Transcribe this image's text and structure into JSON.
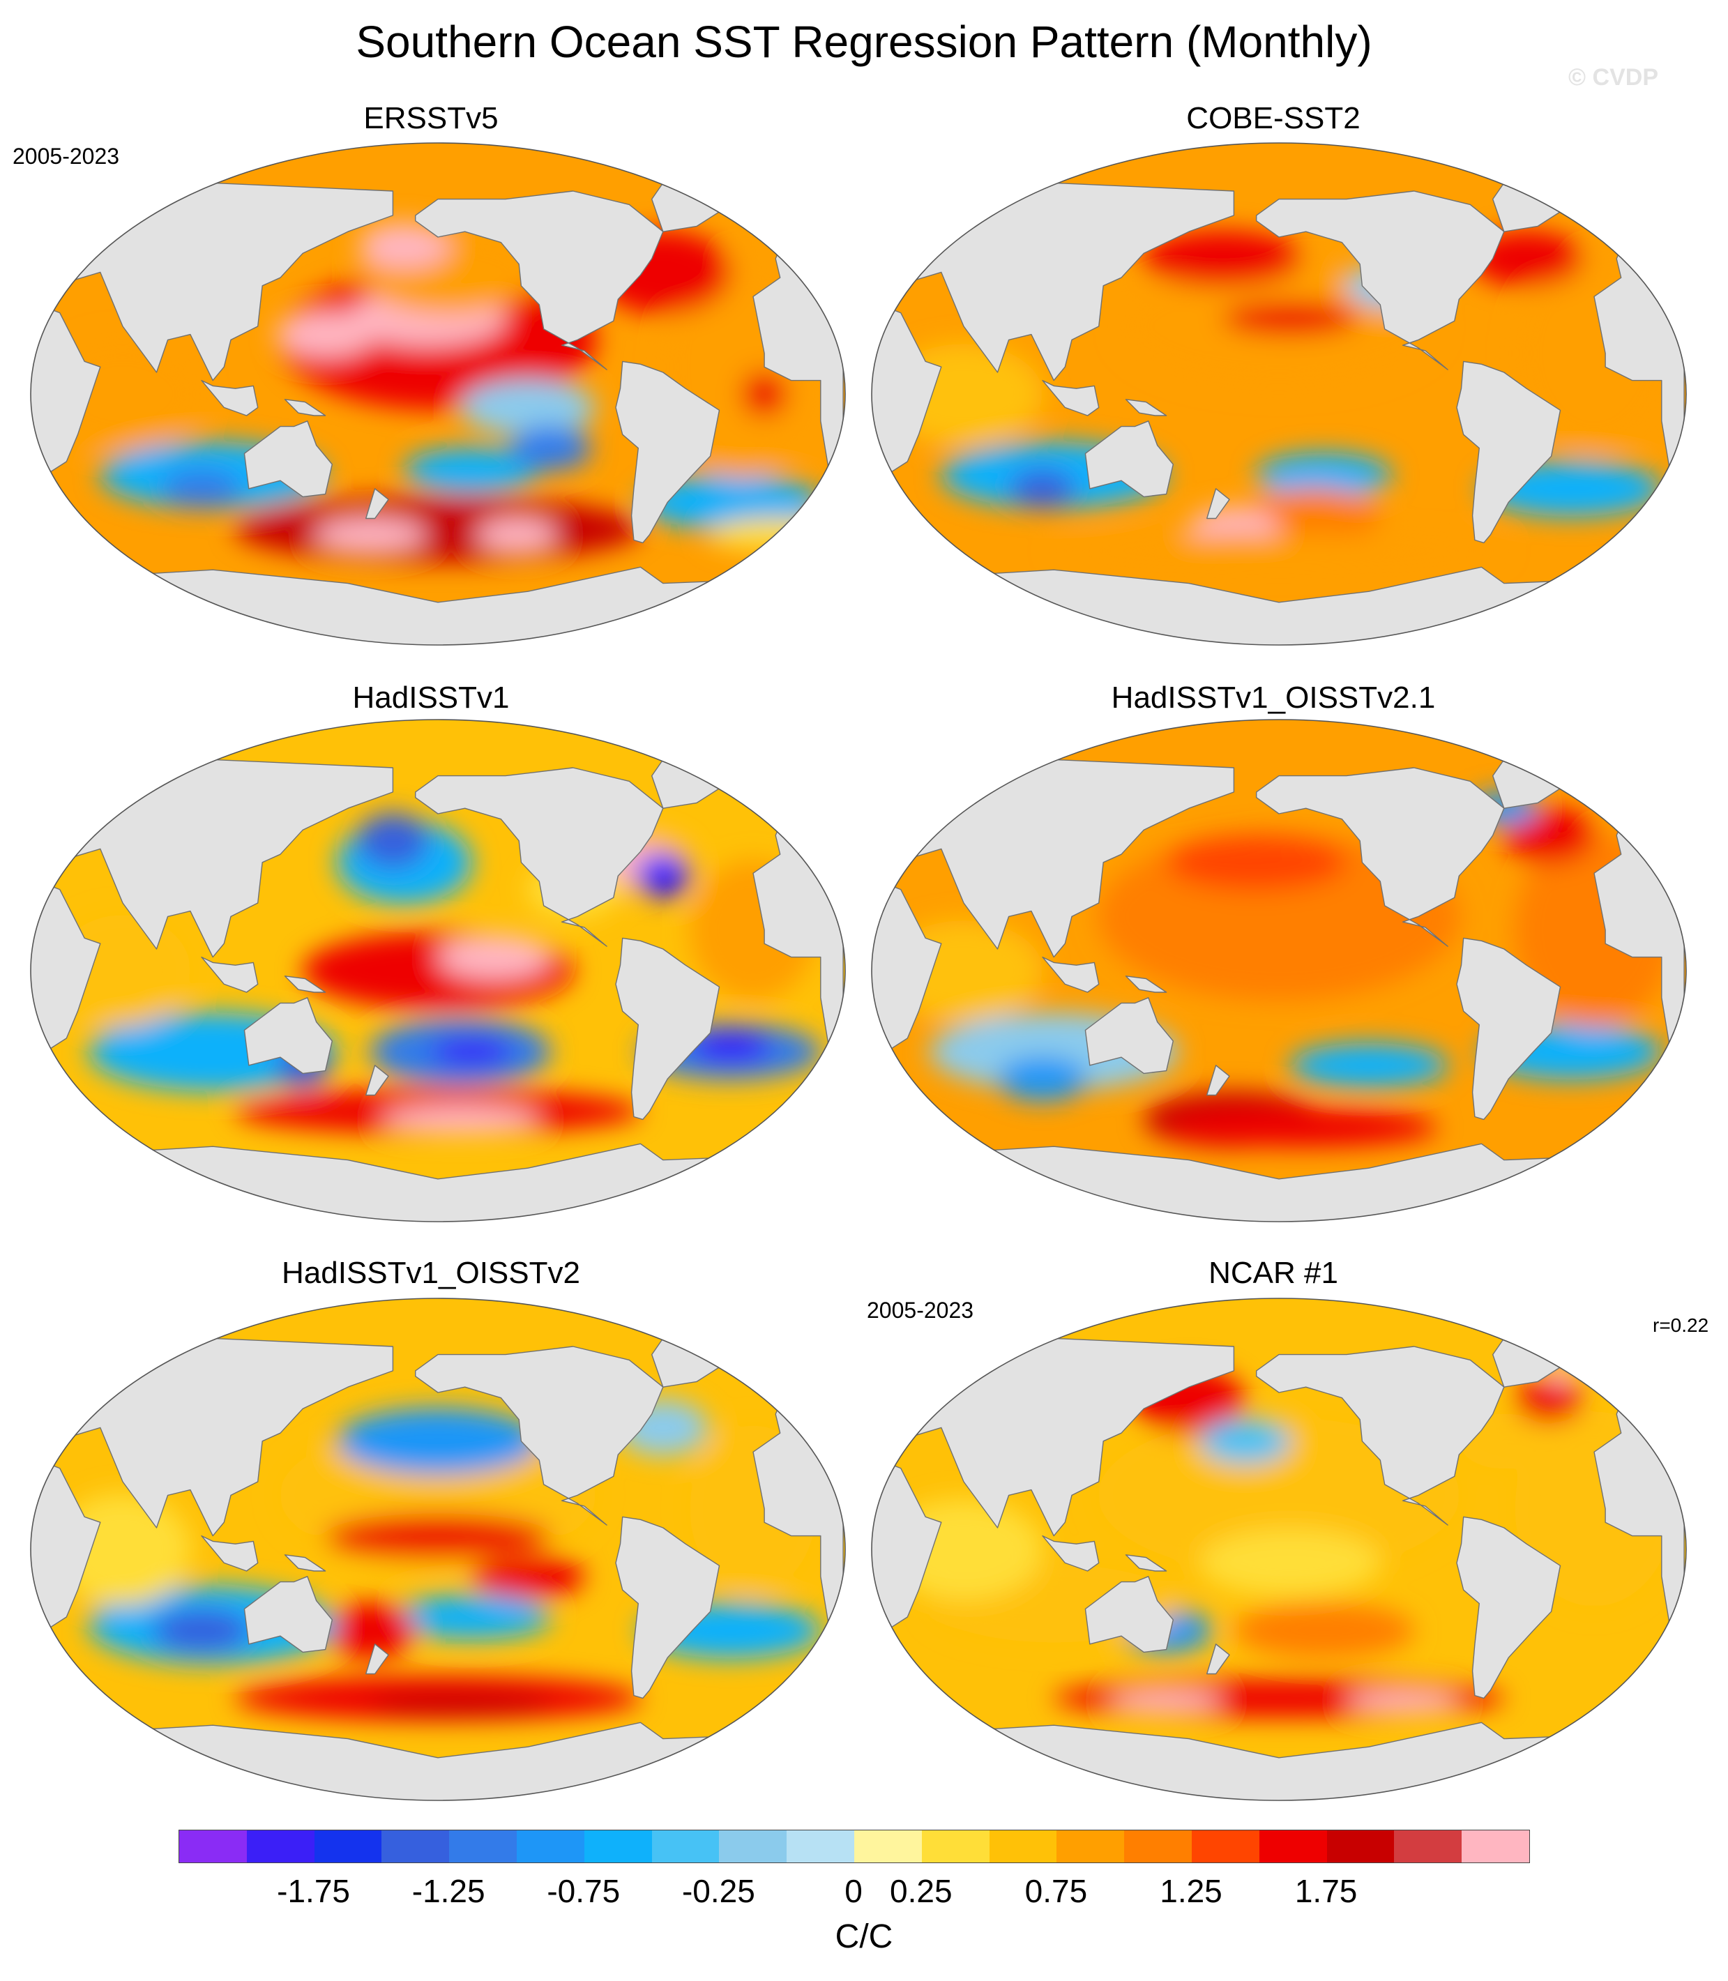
{
  "title": "Southern Ocean SST Regression Pattern (Monthly)",
  "watermark": "© CVDP",
  "panels": [
    {
      "title": "ERSSTv5",
      "period": "2005-2023",
      "style": "ersst"
    },
    {
      "title": "COBE-SST2",
      "style": "cobe"
    },
    {
      "title": "HadISSTv1",
      "style": "hadisst"
    },
    {
      "title": "HadISSTv1_OISSTv2.1",
      "style": "oisst21"
    },
    {
      "title": "HadISSTv1_OISSTv2",
      "style": "oisst2"
    },
    {
      "title": "NCAR #1",
      "period": "2005-2023",
      "pattern_correlation": "r=0.22",
      "style": "ncar"
    }
  ],
  "colorbar": {
    "units": "C/C",
    "tick_labels": [
      "-1.75",
      "-1.25",
      "-0.75",
      "-0.25",
      "0",
      "0.25",
      "0.75",
      "1.25",
      "1.75"
    ],
    "colors": [
      "#8a2cf5",
      "#3b1ff7",
      "#1433ee",
      "#3660de",
      "#337be9",
      "#1e96f7",
      "#0fb1fb",
      "#47c2f5",
      "#8bcbec",
      "#b7e1f4",
      "#fff59d",
      "#ffde38",
      "#ffc107",
      "#ff9f00",
      "#ff7f00",
      "#ff4500",
      "#ee0000",
      "#c80000",
      "#d33d40",
      "#ffb6c1"
    ]
  },
  "land_color": "#e2e2e2",
  "coast_color": "#707070"
}
